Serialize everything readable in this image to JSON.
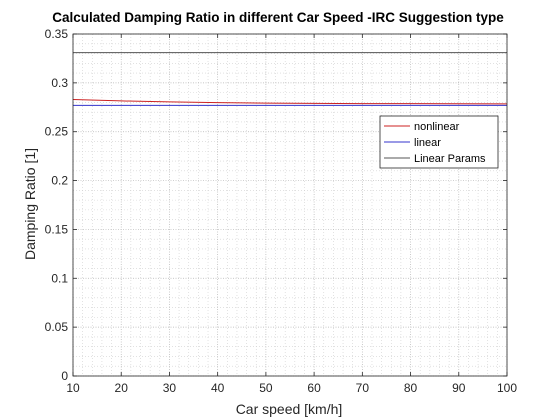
{
  "chart_data": {
    "type": "line",
    "title": "Calculated Damping Ratio in different Car Speed -IRC Suggestion type",
    "xlabel": "Car speed [km/h]",
    "ylabel": "Damping Ratio [1]",
    "xlim": [
      10,
      100
    ],
    "ylim": [
      0,
      0.35
    ],
    "xticks": [
      10,
      20,
      30,
      40,
      50,
      60,
      70,
      80,
      90,
      100
    ],
    "yticks": [
      0,
      0.05,
      0.1,
      0.15,
      0.2,
      0.25,
      0.3,
      0.35
    ],
    "xtick_labels": [
      "10",
      "20",
      "30",
      "40",
      "50",
      "60",
      "70",
      "80",
      "90",
      "100"
    ],
    "ytick_labels": [
      "0",
      "0.05",
      "0.1",
      "0.15",
      "0.2",
      "0.25",
      "0.3",
      "0.35"
    ],
    "grid": true,
    "minor_grid": true,
    "legend_position": "top-right",
    "series": [
      {
        "name": "nonlinear",
        "color": "#cc2222",
        "x": [
          10,
          20,
          30,
          40,
          50,
          60,
          70,
          80,
          90,
          100
        ],
        "y": [
          0.283,
          0.2815,
          0.2805,
          0.2798,
          0.2793,
          0.279,
          0.2788,
          0.2787,
          0.2786,
          0.2785
        ]
      },
      {
        "name": "linear",
        "color": "#3333cc",
        "x": [
          10,
          100
        ],
        "y": [
          0.277,
          0.277
        ]
      },
      {
        "name": "Linear Params",
        "color": "#555555",
        "x": [
          10,
          100
        ],
        "y": [
          0.331,
          0.331
        ]
      }
    ]
  }
}
